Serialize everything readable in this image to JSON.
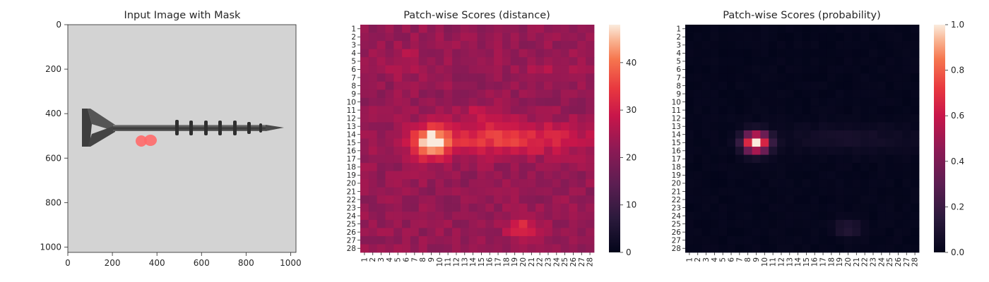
{
  "chart_data": [
    {
      "type": "image",
      "title": "Input Image with Mask",
      "xticks": [
        0,
        200,
        400,
        600,
        800,
        1000
      ],
      "yticks": [
        0,
        200,
        400,
        600,
        800,
        1000
      ],
      "xlim": [
        0,
        1024
      ],
      "ylim": [
        1024,
        0
      ],
      "mask_region": {
        "x": [
          300,
          390
        ],
        "y": [
          500,
          550
        ]
      }
    },
    {
      "type": "heatmap",
      "title": "Patch-wise Scores (distance)",
      "rows": [
        "1",
        "2",
        "3",
        "4",
        "5",
        "6",
        "7",
        "8",
        "9",
        "10",
        "11",
        "12",
        "13",
        "14",
        "15",
        "16",
        "17",
        "18",
        "19",
        "20",
        "21",
        "22",
        "23",
        "24",
        "25",
        "26",
        "27",
        "28"
      ],
      "cols": [
        "1",
        "2",
        "3",
        "4",
        "5",
        "6",
        "7",
        "8",
        "9",
        "10",
        "11",
        "12",
        "13",
        "14",
        "15",
        "16",
        "17",
        "18",
        "19",
        "20",
        "21",
        "22",
        "23",
        "24",
        "25",
        "26",
        "27",
        "28"
      ],
      "colorbar": {
        "min": 0,
        "max": 48,
        "ticks": [
          0,
          10,
          20,
          30,
          40
        ],
        "colormap": "rocket"
      },
      "grid_description": "28x28 values; background ~20-26, hot spot centered at row 15, col 9 (~48), horizontal band rows 13-16 (~30), second spot rows 25-26, cols 19-21 (~33)"
    },
    {
      "type": "heatmap",
      "title": "Patch-wise Scores (probability)",
      "rows": [
        "1",
        "2",
        "3",
        "4",
        "5",
        "6",
        "7",
        "8",
        "9",
        "10",
        "11",
        "12",
        "13",
        "14",
        "15",
        "16",
        "17",
        "18",
        "19",
        "20",
        "21",
        "22",
        "23",
        "24",
        "25",
        "26",
        "27",
        "28"
      ],
      "cols": [
        "1",
        "2",
        "3",
        "4",
        "5",
        "6",
        "7",
        "8",
        "9",
        "10",
        "11",
        "12",
        "13",
        "14",
        "15",
        "16",
        "17",
        "18",
        "19",
        "20",
        "21",
        "22",
        "23",
        "24",
        "25",
        "26",
        "27",
        "28"
      ],
      "colorbar": {
        "min": 0.0,
        "max": 1.0,
        "ticks": [
          "0.0",
          "0.2",
          "0.4",
          "0.6",
          "0.8",
          "1.0"
        ],
        "colormap": "rocket"
      },
      "grid_description": "mostly ~0; peak 1.0 at row 15, col 9; values 0.5-0.7 around rows 14-16, cols 7-10; faint 0.1 at rows 25-26, cols 19-21"
    }
  ]
}
